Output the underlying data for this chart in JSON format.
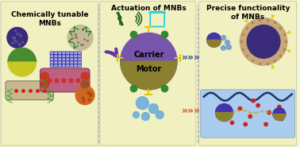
{
  "bg_color": "#f5f5d0",
  "panel_bg": "#f0f0c0",
  "title1": "Chemically tunable\nMNBs",
  "title2": "Actuation of MNBs",
  "title3": "Precise functionality\nof MNBs",
  "carrier_text": "Carrier",
  "motor_text": "Motor",
  "fig_width": 3.78,
  "fig_height": 1.85
}
